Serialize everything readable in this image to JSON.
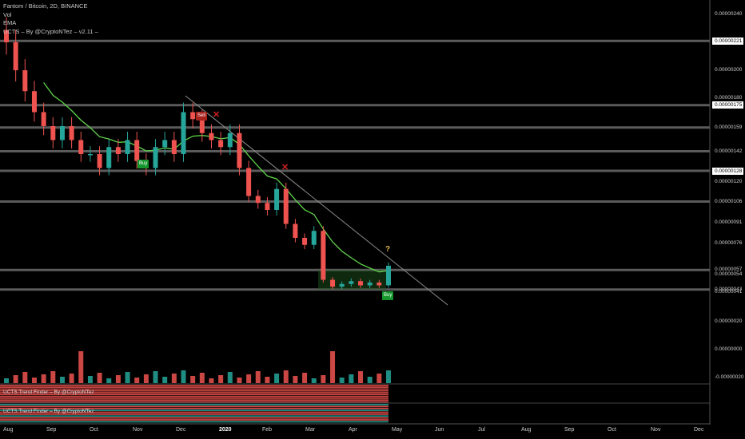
{
  "legend": {
    "symbol": "Fantom / Bitcoin, 2D, BINANCE",
    "vol": "Vol",
    "ema": "EMA",
    "ucts": "UCTS – By @CryptoNTez – v2.11 –"
  },
  "y_axis_labels": [
    "0.00000240",
    "0.00000200",
    "0.00000180",
    "0.00000159",
    "0.00000142",
    "0.00000120",
    "0.00000106",
    "0.00000091",
    "0.00000076",
    "0.00000057",
    "0.00000054",
    "0.00000043",
    "0.00000041",
    "0.00000020",
    "0.00000000",
    "-0.00000020"
  ],
  "y_axis_boxed": [
    "0.00000221",
    "0.00000175",
    "0.00000128"
  ],
  "x_axis_labels": [
    "Aug",
    "Sep",
    "Oct",
    "Nov",
    "Dec",
    "2020",
    "Feb",
    "Mar",
    "Apr",
    "May",
    "Jun",
    "Jul",
    "Aug",
    "Sep",
    "Oct",
    "Nov",
    "Dec"
  ],
  "signals": {
    "buy": "Buy",
    "sell": "Sell",
    "question": "?",
    "x": "✕"
  },
  "indicators": {
    "trend_finder_1": "UCTS Trend Finder – By @CryptoNTez",
    "trend_finder_2": "UCTS Trend Finder – By @CryptoNTez"
  },
  "colors": {
    "up": "#26a69a",
    "down": "#ef5350",
    "ema": "#5fd44a",
    "resistance": "#7a7a7a",
    "buy": "#14962c",
    "sell": "#a8201a"
  },
  "chart_data": {
    "type": "candlestick",
    "title": "Fantom / Bitcoin, 2D, BINANCE",
    "interval": "2D",
    "x_range": [
      "Aug 2019",
      "Dec 2020"
    ],
    "y_range": [
      -2e-07,
      2.4e-06
    ],
    "horizontal_levels": [
      2.21e-06,
      1.75e-06,
      1.59e-06,
      1.42e-06,
      1.28e-06,
      1.06e-06,
      5.7e-07,
      4.3e-07
    ],
    "close_series_approx": [
      2.2e-06,
      2e-06,
      1.85e-06,
      1.7e-06,
      1.6e-06,
      1.5e-06,
      1.6e-06,
      1.5e-06,
      1.4e-06,
      1.4e-06,
      1.3e-06,
      1.45e-06,
      1.4e-06,
      1.5e-06,
      1.35e-06,
      1.3e-06,
      1.45e-06,
      1.5e-06,
      1.4e-06,
      1.7e-06,
      1.65e-06,
      1.55e-06,
      1.5e-06,
      1.45e-06,
      1.55e-06,
      1.3e-06,
      1.1e-06,
      1.05e-06,
      1e-06,
      1.15e-06,
      9e-07,
      8e-07,
      7.5e-07,
      8.5e-07,
      5e-07,
      4.5e-07,
      4.7e-07,
      4.9e-07,
      4.6e-07,
      4.8e-07,
      4.6e-07,
      6e-07
    ],
    "signals": [
      {
        "type": "Buy",
        "date": "Nov 2019"
      },
      {
        "type": "Sell",
        "date": "Dec 2019"
      },
      {
        "type": "Buy",
        "date": "Apr 2020"
      }
    ],
    "volume_spikes": [
      "Aug 2019",
      "Mar 2020"
    ]
  }
}
